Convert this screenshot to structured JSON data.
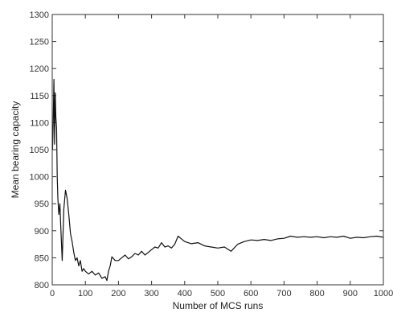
{
  "chart_data": {
    "type": "line",
    "title": "",
    "xlabel": "Number of MCS runs",
    "ylabel": "Mean bearing capacity",
    "xlim": [
      0,
      1000
    ],
    "ylim": [
      800,
      1300
    ],
    "grid": false,
    "legend": "none",
    "x_ticks": [
      "0",
      "100",
      "200",
      "300",
      "400",
      "500",
      "600",
      "700",
      "800",
      "900",
      "1000"
    ],
    "y_ticks": [
      "800",
      "850",
      "900",
      "950",
      "1000",
      "1050",
      "1100",
      "1150",
      "1200",
      "1250",
      "1300"
    ],
    "line_color": "#111111",
    "series": [
      {
        "x": [
          1,
          3,
          5,
          7,
          9,
          11,
          13,
          15,
          17,
          20,
          23,
          26,
          30,
          35,
          40,
          45,
          50,
          55,
          60,
          65,
          70,
          75,
          80,
          85,
          90,
          95,
          100,
          110,
          120,
          130,
          140,
          150,
          160,
          165,
          170,
          175,
          180,
          190,
          200,
          210,
          220,
          230,
          240,
          250,
          260,
          270,
          280,
          290,
          300,
          310,
          320,
          330,
          340,
          350,
          360,
          370,
          380,
          390,
          400,
          420,
          440,
          460,
          480,
          500,
          520,
          540,
          560,
          580,
          600,
          620,
          640,
          660,
          680,
          700,
          720,
          740,
          760,
          780,
          800,
          820,
          840,
          860,
          880,
          900,
          920,
          940,
          960,
          980,
          1000
        ],
        "y": [
          1050,
          1100,
          1180,
          1060,
          1155,
          1110,
          1090,
          1000,
          960,
          930,
          950,
          905,
          845,
          940,
          975,
          960,
          930,
          895,
          880,
          860,
          845,
          850,
          835,
          845,
          825,
          830,
          825,
          820,
          825,
          818,
          822,
          812,
          815,
          808,
          825,
          835,
          852,
          845,
          845,
          850,
          855,
          848,
          852,
          858,
          855,
          862,
          855,
          860,
          865,
          870,
          868,
          878,
          870,
          872,
          868,
          875,
          890,
          885,
          880,
          876,
          878,
          872,
          870,
          868,
          870,
          862,
          875,
          880,
          883,
          882,
          884,
          882,
          885,
          886,
          890,
          888,
          889,
          888,
          889,
          887,
          889,
          888,
          890,
          886,
          888,
          887,
          889,
          890,
          888
        ]
      }
    ]
  }
}
